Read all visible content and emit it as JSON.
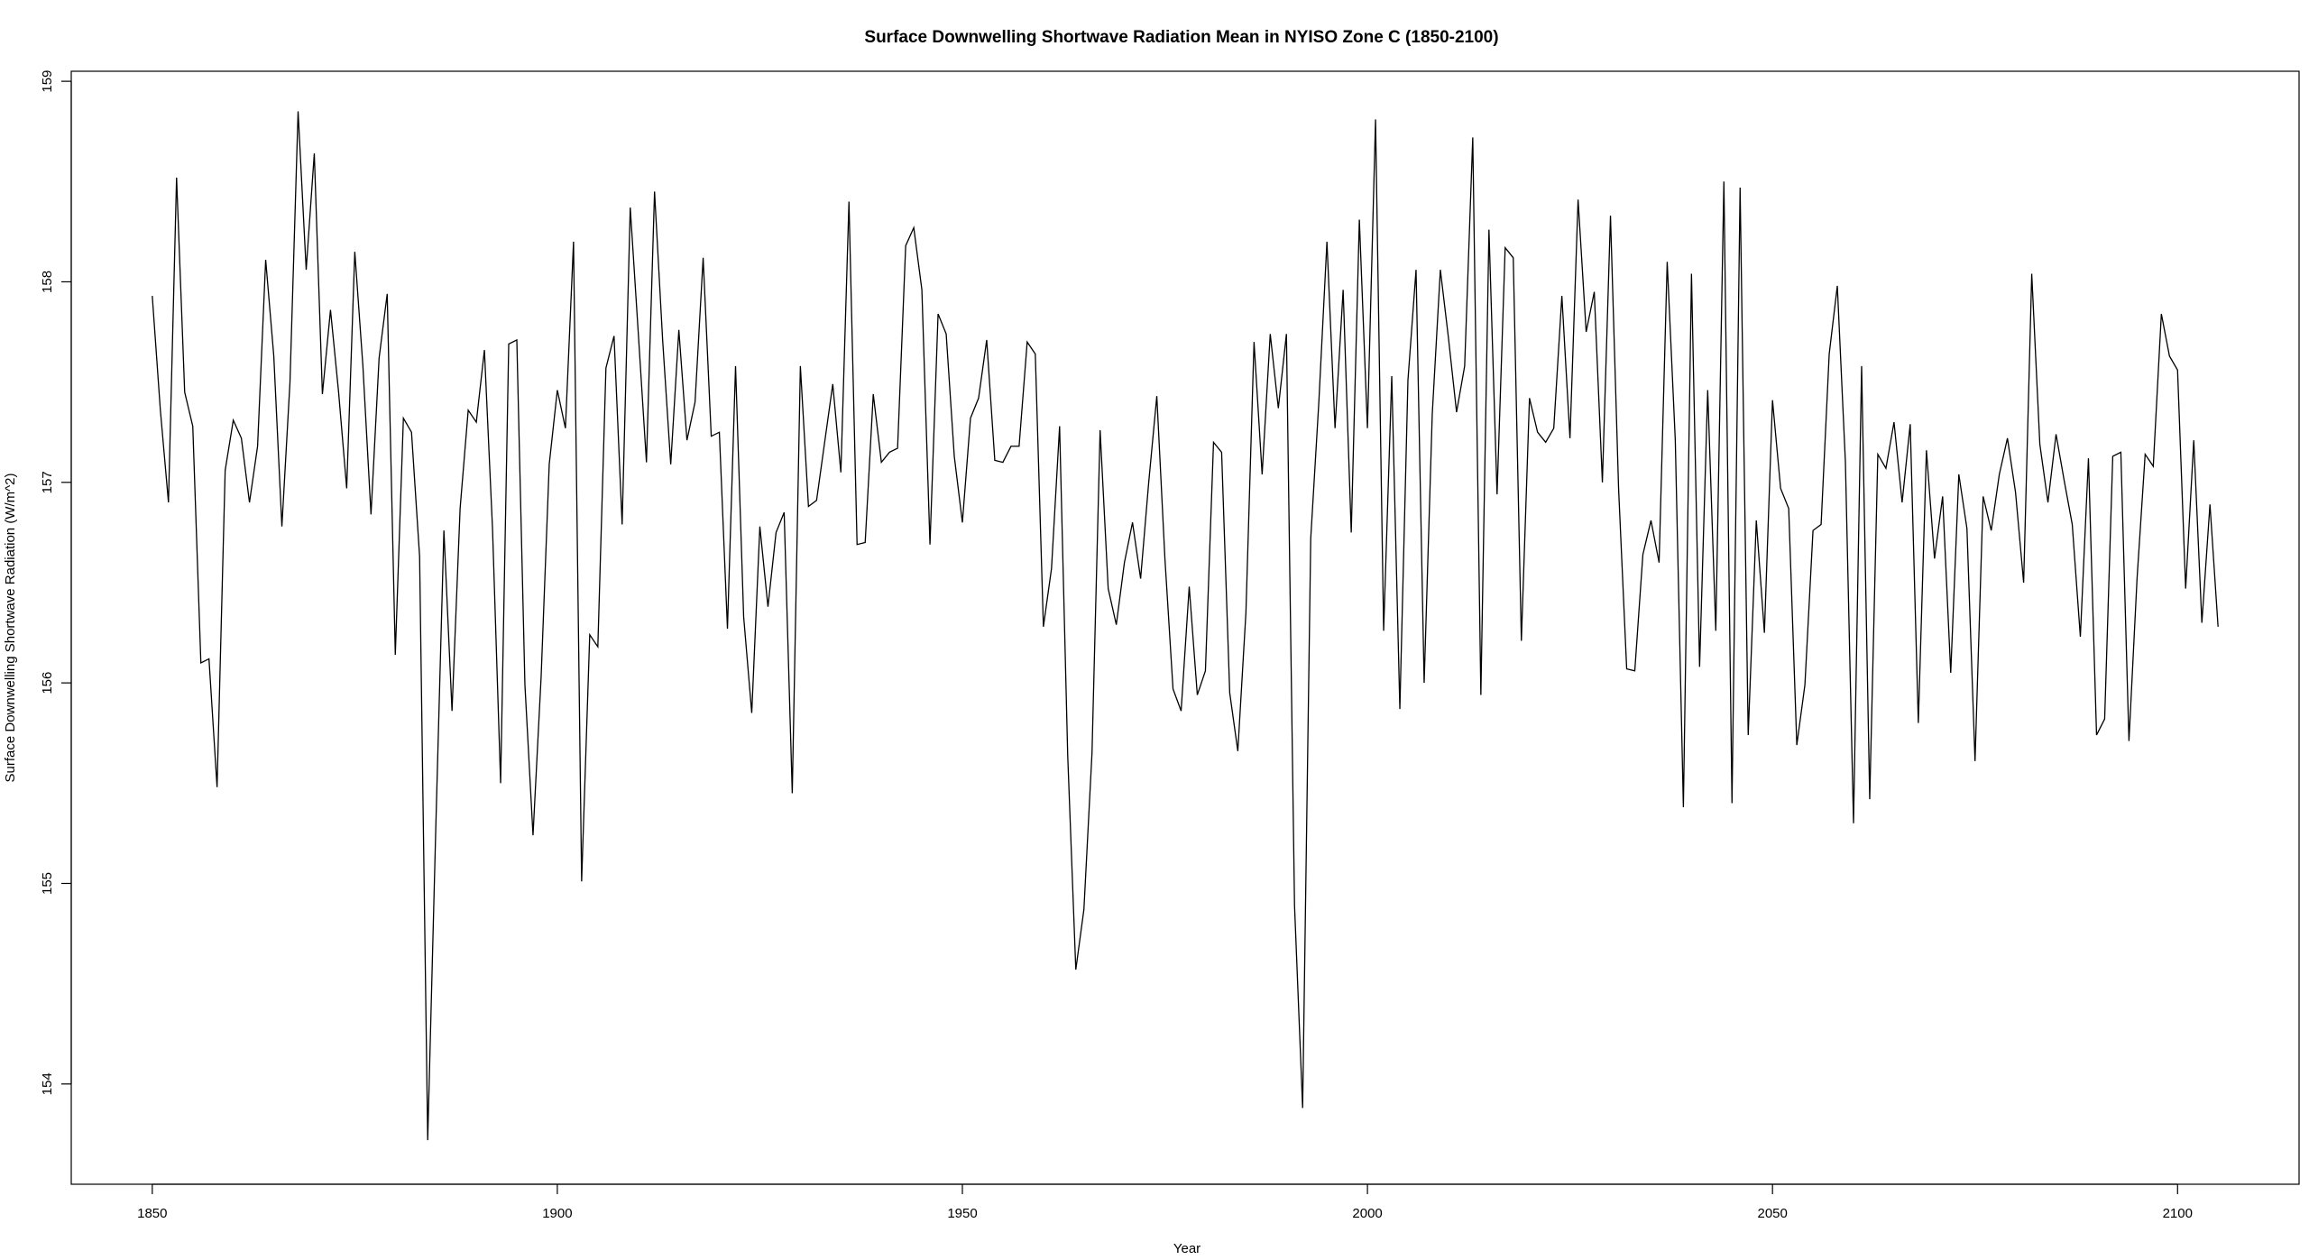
{
  "chart_data": {
    "type": "line",
    "title": "Surface Downwelling Shortwave Radiation Mean in NYISO Zone C (1850-2100)",
    "xlabel": "Year",
    "ylabel": "Surface Downwelling Shortwave Radiation (W/m^2)",
    "xlim": [
      1840,
      2115
    ],
    "ylim": [
      153.5,
      159.05
    ],
    "xticks": [
      1850,
      1900,
      1950,
      2000,
      2050,
      2100
    ],
    "yticks": [
      154,
      155,
      156,
      157,
      158,
      159
    ],
    "grid": false,
    "legend": "none",
    "line_color": "#000000",
    "x_start": 1850,
    "x_step": 1,
    "values": [
      157.93,
      157.36,
      156.9,
      158.52,
      157.45,
      157.28,
      156.1,
      156.12,
      155.48,
      157.06,
      157.31,
      157.22,
      156.9,
      157.18,
      158.11,
      157.63,
      156.78,
      157.5,
      158.85,
      158.06,
      158.64,
      157.44,
      157.86,
      157.45,
      156.97,
      158.15,
      157.58,
      156.84,
      157.62,
      157.94,
      156.14,
      157.32,
      157.25,
      156.63,
      153.72,
      155.28,
      156.76,
      155.86,
      156.87,
      157.36,
      157.3,
      157.66,
      156.77,
      155.5,
      157.69,
      157.71,
      155.99,
      155.24,
      156.03,
      157.09,
      157.46,
      157.27,
      158.2,
      155.01,
      156.24,
      156.18,
      157.57,
      157.73,
      156.79,
      158.37,
      157.74,
      157.1,
      158.45,
      157.71,
      157.09,
      157.76,
      157.21,
      157.4,
      158.12,
      157.23,
      157.25,
      156.27,
      157.58,
      156.33,
      155.85,
      156.78,
      156.38,
      156.75,
      156.85,
      155.45,
      157.58,
      156.88,
      156.91,
      157.2,
      157.49,
      157.05,
      158.4,
      156.69,
      156.7,
      157.44,
      157.1,
      157.15,
      157.17,
      158.18,
      158.27,
      157.96,
      156.69,
      157.84,
      157.74,
      157.13,
      156.8,
      157.32,
      157.42,
      157.71,
      157.11,
      157.1,
      157.18,
      157.18,
      157.7,
      157.64,
      156.28,
      156.57,
      157.28,
      155.64,
      154.57,
      154.87,
      155.65,
      157.26,
      156.47,
      156.29,
      156.6,
      156.8,
      156.52,
      157.0,
      157.43,
      156.62,
      155.97,
      155.86,
      156.48,
      155.94,
      156.06,
      157.2,
      157.15,
      155.95,
      155.66,
      156.35,
      157.7,
      157.04,
      157.74,
      157.37,
      157.74,
      154.89,
      153.88,
      156.72,
      157.4,
      158.2,
      157.27,
      157.96,
      156.75,
      158.31,
      157.27,
      158.81,
      156.26,
      157.53,
      155.87,
      157.51,
      158.06,
      156.0,
      157.34,
      158.06,
      157.72,
      157.35,
      157.58,
      158.72,
      155.94,
      158.26,
      156.94,
      158.17,
      158.12,
      156.21,
      157.42,
      157.25,
      157.2,
      157.27,
      157.93,
      157.22,
      158.41,
      157.75,
      157.95,
      157.0,
      158.33,
      156.97,
      156.07,
      156.06,
      156.64,
      156.81,
      156.6,
      158.1,
      157.21,
      155.38,
      158.04,
      156.08,
      157.46,
      156.26,
      158.5,
      155.4,
      158.47,
      155.74,
      156.81,
      156.25,
      157.41,
      156.97,
      156.87,
      155.69,
      155.99,
      156.76,
      156.79,
      157.64,
      157.98,
      157.1,
      155.3,
      157.58,
      155.42,
      157.14,
      157.07,
      157.3,
      156.9,
      157.29,
      155.8,
      157.16,
      156.62,
      156.93,
      156.05,
      157.04,
      156.77,
      155.61,
      156.93,
      156.76,
      157.04,
      157.22,
      156.95,
      156.5,
      158.04,
      157.19,
      156.9,
      157.24,
      157.01,
      156.79,
      156.23,
      157.12,
      155.74,
      155.82,
      157.13,
      157.15,
      155.71,
      156.52,
      157.14,
      157.08,
      157.84,
      157.63,
      157.56,
      156.47,
      157.21,
      156.3,
      156.89,
      156.28
    ]
  }
}
